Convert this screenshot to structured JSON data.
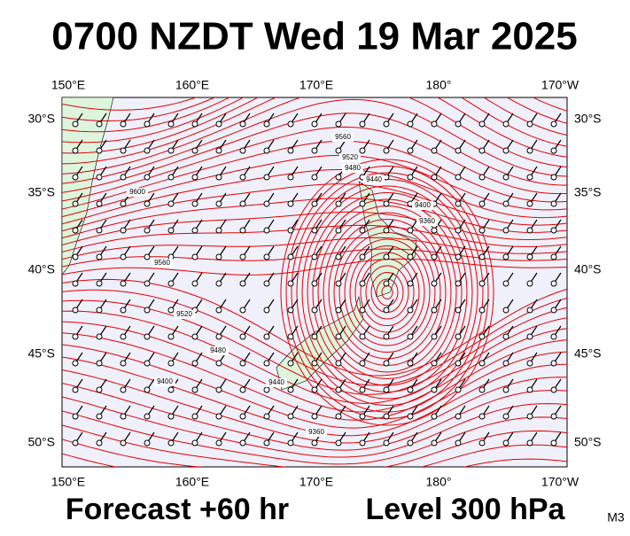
{
  "header": {
    "title": "0700 NZDT Wed 19 Mar 2025"
  },
  "map": {
    "lon_labels": [
      "150°E",
      "160°E",
      "170°E",
      "180°",
      "170°W"
    ],
    "lat_labels": [
      "30°S",
      "35°S",
      "40°S",
      "45°S",
      "50°S"
    ],
    "contour_labels": [
      "9560",
      "9520",
      "9480",
      "9440",
      "9400",
      "9360",
      "9600",
      "9560",
      "9520",
      "9480",
      "9400",
      "9440",
      "9360"
    ]
  },
  "footer": {
    "forecast": "Forecast +60 hr",
    "level": "Level 300 hPa",
    "model": "M3"
  }
}
